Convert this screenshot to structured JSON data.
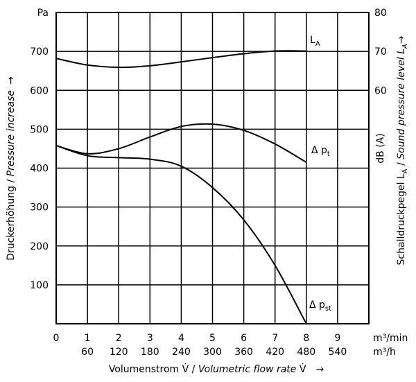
{
  "chart_data": {
    "type": "line",
    "left_label": [
      "Druckerhöhung / ",
      "Pressure increase",
      "→"
    ],
    "right_label": [
      "Schalldruckpegel L",
      "A",
      " / ",
      "Sound pressure level L",
      "A",
      "→"
    ],
    "right_unit": "dB (A)",
    "bottom_label": [
      "Volumenstrom V̇ / ",
      "Volumetric flow rate",
      " V̇",
      "→"
    ],
    "x_unit": "m³/min",
    "x2_unit": "m³/h",
    "xlim": [
      0,
      10
    ],
    "xticks": [
      0,
      1,
      2,
      3,
      4,
      5,
      6,
      7,
      8,
      9
    ],
    "x2lim": [
      0,
      600
    ],
    "x2ticks": [
      60,
      120,
      180,
      240,
      300,
      360,
      420,
      480,
      540
    ],
    "ylim": [
      0,
      800
    ],
    "yticks": [
      100,
      200,
      300,
      400,
      500,
      600,
      700,
      {
        "value": 800,
        "label": "Pa"
      }
    ],
    "y2lim": [
      0,
      80
    ],
    "y2ticks": [
      60,
      70,
      80
    ],
    "grid": true,
    "x": [
      0,
      1,
      2,
      3,
      4,
      5,
      6,
      7,
      8
    ],
    "series": [
      {
        "name": "L",
        "sub": "A",
        "color": "#000000",
        "axis": "y2",
        "values": [
          68.2,
          66.5,
          65.9,
          66.3,
          67.3,
          68.4,
          69.4,
          70.1,
          70.1
        ]
      },
      {
        "name": "Δ p",
        "sub": "t",
        "color": "#000000",
        "values": [
          458,
          437,
          450,
          480,
          507,
          513,
          497,
          462,
          415
        ]
      },
      {
        "name": "Δ p",
        "sub": "st",
        "color": "#000000",
        "values": [
          458,
          432,
          427,
          423,
          405,
          350,
          267,
          150,
          0
        ]
      }
    ]
  }
}
